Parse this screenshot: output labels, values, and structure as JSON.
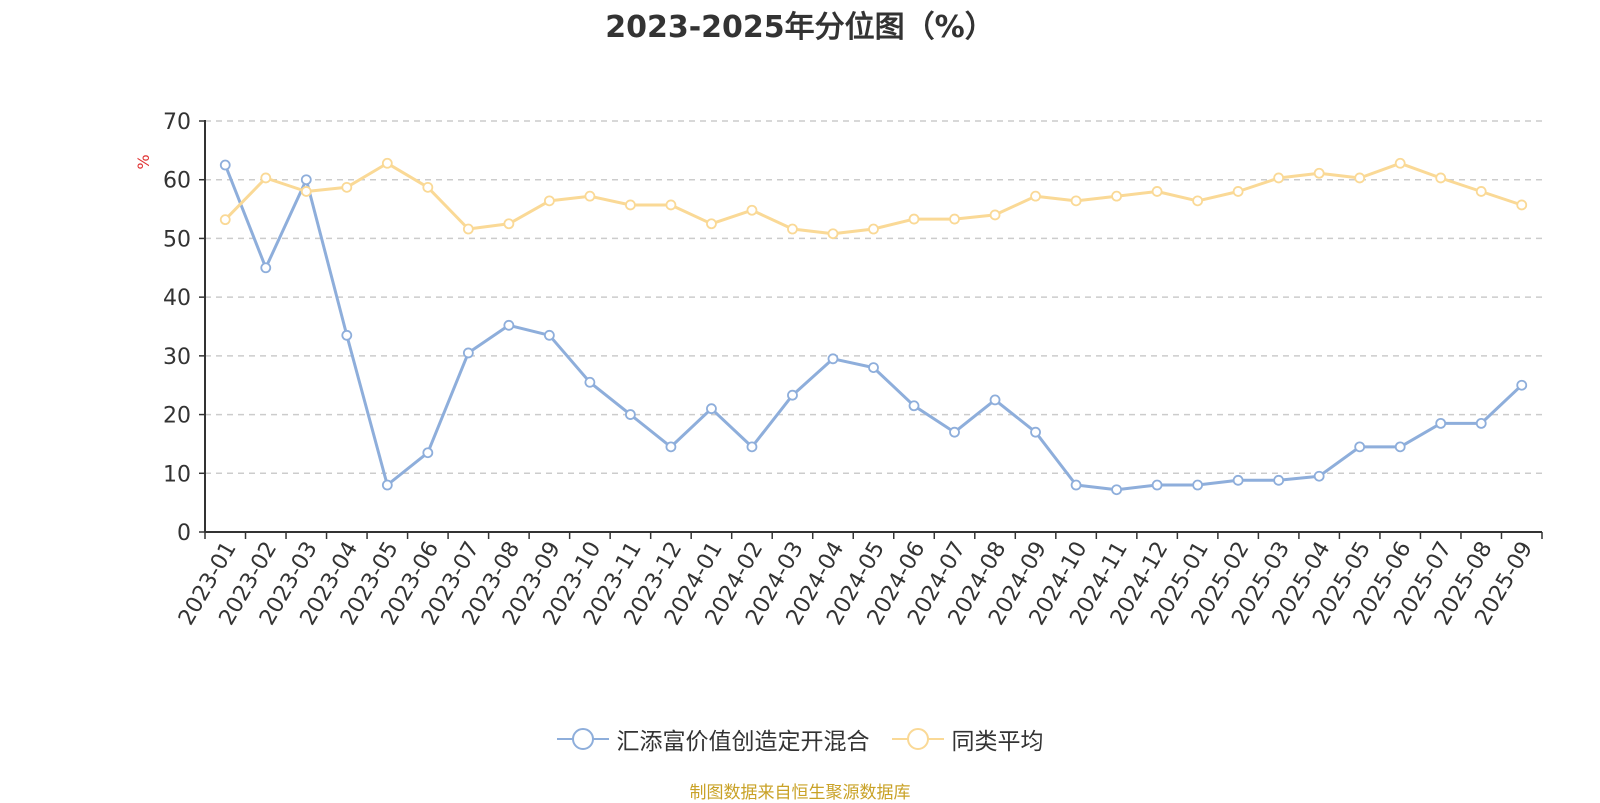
{
  "chart_data": {
    "type": "line",
    "title": "2023-2025年分位图（%）",
    "ylabel": "%",
    "xlabel": "",
    "ylim": [
      0,
      70
    ],
    "yticks": [
      0,
      10,
      20,
      30,
      40,
      50,
      60,
      70
    ],
    "grid": true,
    "legend": "bottom-center",
    "categories": [
      "2023-01",
      "2023-02",
      "2023-03",
      "2023-04",
      "2023-05",
      "2023-06",
      "2023-07",
      "2023-08",
      "2023-09",
      "2023-10",
      "2023-11",
      "2023-12",
      "2024-01",
      "2024-02",
      "2024-03",
      "2024-04",
      "2024-05",
      "2024-06",
      "2024-07",
      "2024-08",
      "2024-09",
      "2024-10",
      "2024-11",
      "2024-12",
      "2025-01",
      "2025-02",
      "2025-03",
      "2025-04",
      "2025-05",
      "2025-06",
      "2025-07",
      "2025-08",
      "2025-09"
    ],
    "series": [
      {
        "name": "汇添富价值创造定开混合",
        "color": "#8eaedb",
        "values": [
          62.5,
          45,
          60,
          33.5,
          8,
          13.5,
          30.5,
          35.2,
          33.5,
          25.5,
          20,
          14.5,
          21,
          14.5,
          23.3,
          29.5,
          28,
          21.5,
          17,
          22.5,
          17,
          8,
          7.2,
          8,
          8,
          8.8,
          8.8,
          9.5,
          14.5,
          14.5,
          18.5,
          18.5,
          25
        ]
      },
      {
        "name": "同类平均",
        "color": "#fad996",
        "values": [
          53.2,
          60.3,
          58,
          58.7,
          62.8,
          58.7,
          51.6,
          52.5,
          56.4,
          57.2,
          55.7,
          55.7,
          52.5,
          54.8,
          51.6,
          50.8,
          51.6,
          53.3,
          53.3,
          54,
          57.2,
          56.4,
          57.2,
          58,
          56.4,
          58,
          60.3,
          61.1,
          60.3,
          62.8,
          60.3,
          58,
          55.7
        ]
      }
    ]
  },
  "footer": {
    "source": "制图数据来自恒生聚源数据库"
  },
  "colors": {
    "axis": "#333333",
    "grid": "#cccccc",
    "ylabel": "#e03131",
    "footer": "#c9a227"
  }
}
